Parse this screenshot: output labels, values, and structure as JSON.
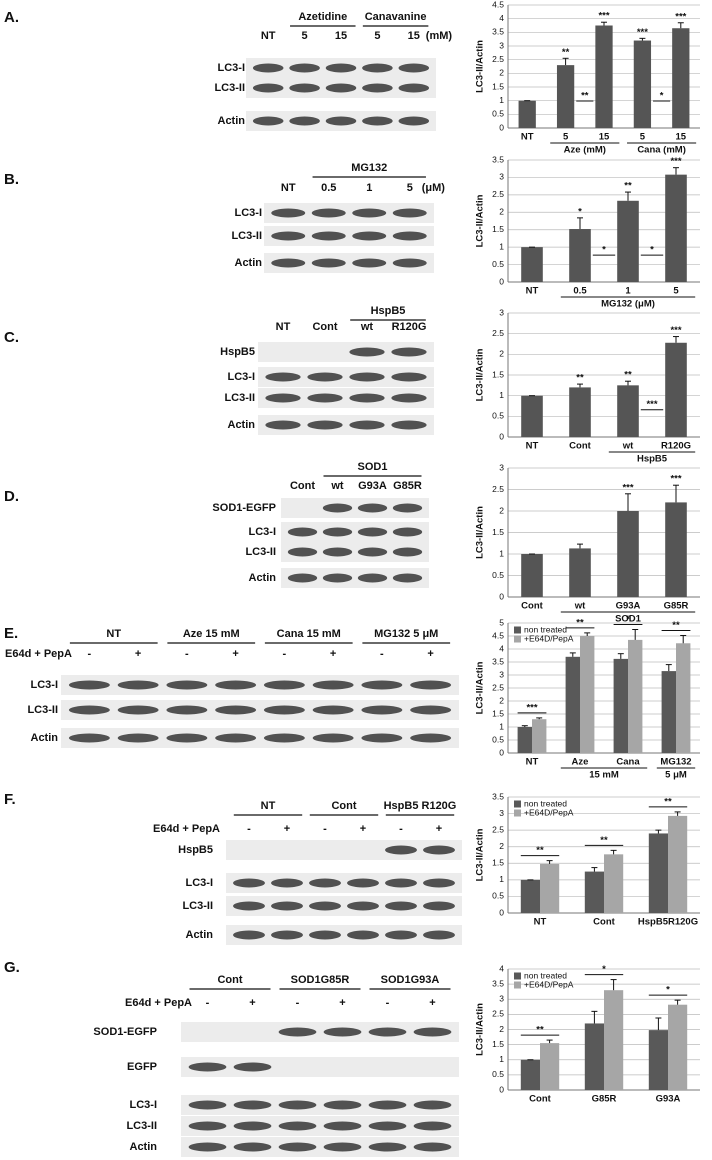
{
  "panels": [
    {
      "letter": "A.",
      "groups": [
        {
          "label": "Azetidine",
          "lanes": [
            1,
            2
          ]
        },
        {
          "label": "Canavanine",
          "lanes": [
            3,
            4
          ]
        }
      ],
      "lanes": [
        "NT",
        "5",
        "15",
        "5",
        "15"
      ],
      "unit": "(mM)",
      "rows": [
        "LC3-I",
        "LC3-II",
        "Actin"
      ]
    },
    {
      "letter": "B.",
      "groups": [
        {
          "label": "MG132",
          "lanes": [
            1,
            2,
            3
          ]
        }
      ],
      "lanes": [
        "NT",
        "0.5",
        "1",
        "5"
      ],
      "unit": "(μM)",
      "rows": [
        "LC3-I",
        "LC3-II",
        "Actin"
      ]
    },
    {
      "letter": "C.",
      "groups": [
        {
          "label": "HspB5",
          "lanes": [
            2,
            3
          ]
        }
      ],
      "lanes": [
        "NT",
        "Cont",
        "wt",
        "R120G"
      ],
      "rows": [
        "HspB5",
        "LC3-I",
        "LC3-II",
        "Actin"
      ]
    },
    {
      "letter": "D.",
      "groups": [
        {
          "label": "SOD1",
          "lanes": [
            1,
            2,
            3
          ]
        }
      ],
      "lanes": [
        "Cont",
        "wt",
        "G93A",
        "G85R"
      ],
      "rows": [
        "SOD1-EGFP",
        "LC3-I",
        "LC3-II",
        "Actin"
      ]
    },
    {
      "letter": "E.",
      "treatment": "E64d + PepA",
      "groups": [
        {
          "label": "NT",
          "lanes": [
            0,
            1
          ]
        },
        {
          "label": "Aze 15 mM",
          "lanes": [
            2,
            3
          ]
        },
        {
          "label": "Cana 15 mM",
          "lanes": [
            4,
            5
          ]
        },
        {
          "label": "MG132  5 μM",
          "lanes": [
            6,
            7
          ]
        }
      ],
      "lanes": [
        "-",
        "+",
        "-",
        "+",
        "-",
        "+",
        "-",
        "+"
      ],
      "rows": [
        "LC3-I",
        "LC3-II",
        "Actin"
      ]
    },
    {
      "letter": "F.",
      "treatment": "E64d + PepA",
      "groups": [
        {
          "label": "NT",
          "lanes": [
            0,
            1
          ]
        },
        {
          "label": "Cont",
          "lanes": [
            2,
            3
          ]
        },
        {
          "label": "HspB5 R120G",
          "lanes": [
            4,
            5
          ]
        }
      ],
      "lanes": [
        "-",
        "+",
        "-",
        "+",
        "-",
        "+"
      ],
      "rows": [
        "HspB5",
        "LC3-I",
        "LC3-II",
        "Actin"
      ]
    },
    {
      "letter": "G.",
      "treatment": "E64d + PepA",
      "groups": [
        {
          "label": "Cont",
          "lanes": [
            0,
            1
          ]
        },
        {
          "label": "SOD1G85R",
          "lanes": [
            2,
            3
          ]
        },
        {
          "label": "SOD1G93A",
          "lanes": [
            4,
            5
          ]
        }
      ],
      "lanes": [
        "-",
        "+",
        "-",
        "+",
        "-",
        "+"
      ],
      "rows": [
        "SOD1-EGFP",
        "EGFP",
        "LC3-I",
        "LC3-II",
        "Actin"
      ]
    }
  ],
  "chart_data": [
    {
      "type": "bar",
      "y_label": "LC3-II/Actin",
      "categories": [
        "NT",
        "5",
        "15",
        "5",
        "15"
      ],
      "values": [
        1,
        2.3,
        3.75,
        3.2,
        3.65
      ],
      "errors": [
        0,
        0.25,
        0.12,
        0.08,
        0.2
      ],
      "color": "#555555",
      "stars": [
        null,
        "**",
        "***",
        "***",
        "***"
      ],
      "comparisons": [
        {
          "between": [
            1,
            2
          ],
          "text": "**"
        },
        {
          "between": [
            3,
            4
          ],
          "text": "*"
        }
      ],
      "groups": [
        {
          "label": "Aze (mM)",
          "categories": [
            1,
            2
          ]
        },
        {
          "label": "Cana (mM)",
          "categories": [
            3,
            4
          ]
        }
      ],
      "ylim": [
        0,
        4.5
      ],
      "yticks": [
        0,
        0.5,
        1,
        1.5,
        2,
        2.5,
        3,
        3.5,
        4,
        4.5
      ],
      "grid": true
    },
    {
      "type": "bar",
      "y_label": "LC3-II/Actin",
      "categories": [
        "NT",
        "0.5",
        "1",
        "5"
      ],
      "values": [
        1,
        1.52,
        2.33,
        3.08
      ],
      "errors": [
        0,
        0.32,
        0.25,
        0.2
      ],
      "color": "#555555",
      "stars": [
        null,
        "*",
        "**",
        "***"
      ],
      "comparisons": [
        {
          "between": [
            1,
            2
          ],
          "text": "*"
        },
        {
          "between": [
            2,
            3
          ],
          "text": "*"
        }
      ],
      "groups": [
        {
          "label": "MG132 (μM)",
          "categories": [
            1,
            2,
            3
          ]
        }
      ],
      "ylim": [
        0,
        3.5
      ],
      "yticks": [
        0,
        0.5,
        1,
        1.5,
        2,
        2.5,
        3,
        3.5
      ],
      "grid": true
    },
    {
      "type": "bar",
      "y_label": "LC3-II/Actin",
      "categories": [
        "NT",
        "Cont",
        "wt",
        "R120G"
      ],
      "values": [
        1,
        1.2,
        1.25,
        2.28
      ],
      "errors": [
        0,
        0.08,
        0.1,
        0.15
      ],
      "color": "#555555",
      "stars": [
        null,
        "**",
        "**",
        "***"
      ],
      "comparisons": [
        {
          "between": [
            2,
            3
          ],
          "text": "***"
        }
      ],
      "groups": [
        {
          "label": "HspB5",
          "categories": [
            2,
            3
          ]
        }
      ],
      "ylim": [
        0,
        3
      ],
      "yticks": [
        0,
        0.5,
        1,
        1.5,
        2,
        2.5,
        3
      ],
      "grid": true
    },
    {
      "type": "bar",
      "y_label": "LC3-II/Actin",
      "categories": [
        "Cont",
        "wt",
        "G93A",
        "G85R"
      ],
      "values": [
        1,
        1.13,
        2,
        2.2
      ],
      "errors": [
        0,
        0.1,
        0.4,
        0.4
      ],
      "color": "#555555",
      "stars": [
        null,
        null,
        "***",
        "***"
      ],
      "groups": [
        {
          "label": "SOD1",
          "categories": [
            1,
            2,
            3
          ]
        }
      ],
      "ylim": [
        0,
        3
      ],
      "yticks": [
        0,
        0.5,
        1,
        1.5,
        2,
        2.5,
        3
      ],
      "grid": true
    },
    {
      "type": "bar",
      "y_label": "LC3-II/Actin",
      "categories": [
        "NT",
        "Aze",
        "Cana",
        "MG132"
      ],
      "series": [
        {
          "name": "non treated",
          "color": "#595959",
          "values": [
            1,
            3.7,
            3.62,
            3.15
          ],
          "errors": [
            0.05,
            0.15,
            0.2,
            0.25
          ]
        },
        {
          "name": "+E64D/PepA",
          "color": "#a6a6a6",
          "values": [
            1.3,
            4.5,
            4.35,
            4.22
          ],
          "errors": [
            0.05,
            0.12,
            0.4,
            0.3
          ]
        }
      ],
      "comparisons": [
        {
          "category": 0,
          "text": "***"
        },
        {
          "category": 1,
          "text": "**"
        },
        {
          "category": 2,
          "text": "*"
        },
        {
          "category": 3,
          "text": "**"
        }
      ],
      "groups": [
        {
          "label": "15 mM",
          "categories": [
            1,
            2
          ]
        },
        {
          "label": "5 μM",
          "categories": [
            3
          ]
        }
      ],
      "ylim": [
        0,
        5
      ],
      "yticks": [
        0,
        0.5,
        1,
        1.5,
        2,
        2.5,
        3,
        3.5,
        4,
        4.5,
        5
      ],
      "grid": true,
      "legend": "top-left"
    },
    {
      "type": "bar",
      "y_label": "LC3-II/Actin",
      "categories": [
        "NT",
        "Cont",
        "HspB5R120G"
      ],
      "series": [
        {
          "name": "non treated",
          "color": "#595959",
          "values": [
            1,
            1.25,
            2.4
          ],
          "errors": [
            0,
            0.12,
            0.1
          ]
        },
        {
          "name": "+E64D/PepA",
          "color": "#a6a6a6",
          "values": [
            1.48,
            1.77,
            2.93
          ],
          "errors": [
            0.1,
            0.12,
            0.12
          ]
        }
      ],
      "comparisons": [
        {
          "category": 0,
          "text": "**"
        },
        {
          "category": 1,
          "text": "**"
        },
        {
          "category": 2,
          "text": "**"
        }
      ],
      "ylim": [
        0,
        3.5
      ],
      "yticks": [
        0,
        0.5,
        1,
        1.5,
        2,
        2.5,
        3,
        3.5
      ],
      "grid": true,
      "legend": "top-left"
    },
    {
      "type": "bar",
      "y_label": "LC3-II/Actin",
      "categories": [
        "Cont",
        "G85R",
        "G93A"
      ],
      "series": [
        {
          "name": "non treated",
          "color": "#595959",
          "values": [
            1,
            2.2,
            1.98
          ],
          "errors": [
            0,
            0.4,
            0.4
          ]
        },
        {
          "name": "+E64D/PepA",
          "color": "#a6a6a6",
          "values": [
            1.55,
            3.3,
            2.82
          ],
          "errors": [
            0.1,
            0.35,
            0.15
          ]
        }
      ],
      "comparisons": [
        {
          "category": 0,
          "text": "**"
        },
        {
          "category": 1,
          "text": "*"
        },
        {
          "category": 2,
          "text": "*"
        }
      ],
      "ylim": [
        0,
        4
      ],
      "yticks": [
        0,
        0.5,
        1,
        1.5,
        2,
        2.5,
        3,
        3.5,
        4
      ],
      "grid": true,
      "legend": "top-left"
    }
  ]
}
